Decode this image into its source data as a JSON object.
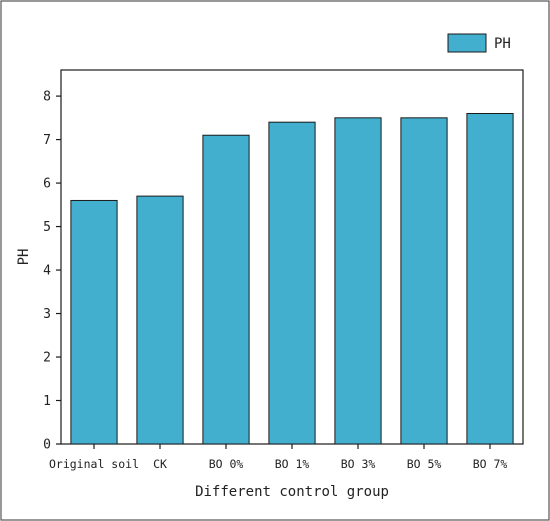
{
  "chart_data": {
    "type": "bar",
    "categories": [
      "Original soil",
      "CK",
      "BO 0%",
      "BO 1%",
      "BO 3%",
      "BO 5%",
      "BO 7%"
    ],
    "series": [
      {
        "name": "PH",
        "values": [
          5.6,
          5.7,
          7.1,
          7.4,
          7.5,
          7.5,
          7.6
        ]
      }
    ],
    "title": "",
    "xlabel": "Different control group",
    "ylabel": "PH",
    "ylim": [
      0,
      8.6
    ],
    "yticks": [
      0,
      1,
      2,
      3,
      4,
      5,
      6,
      7,
      8
    ],
    "grid": false,
    "legend_position": "top-right",
    "colors": {
      "bar_fill": "#42AFCF",
      "bar_stroke": "#1a1a1a",
      "axis": "#1a1a1a",
      "frame": "#555555"
    }
  }
}
